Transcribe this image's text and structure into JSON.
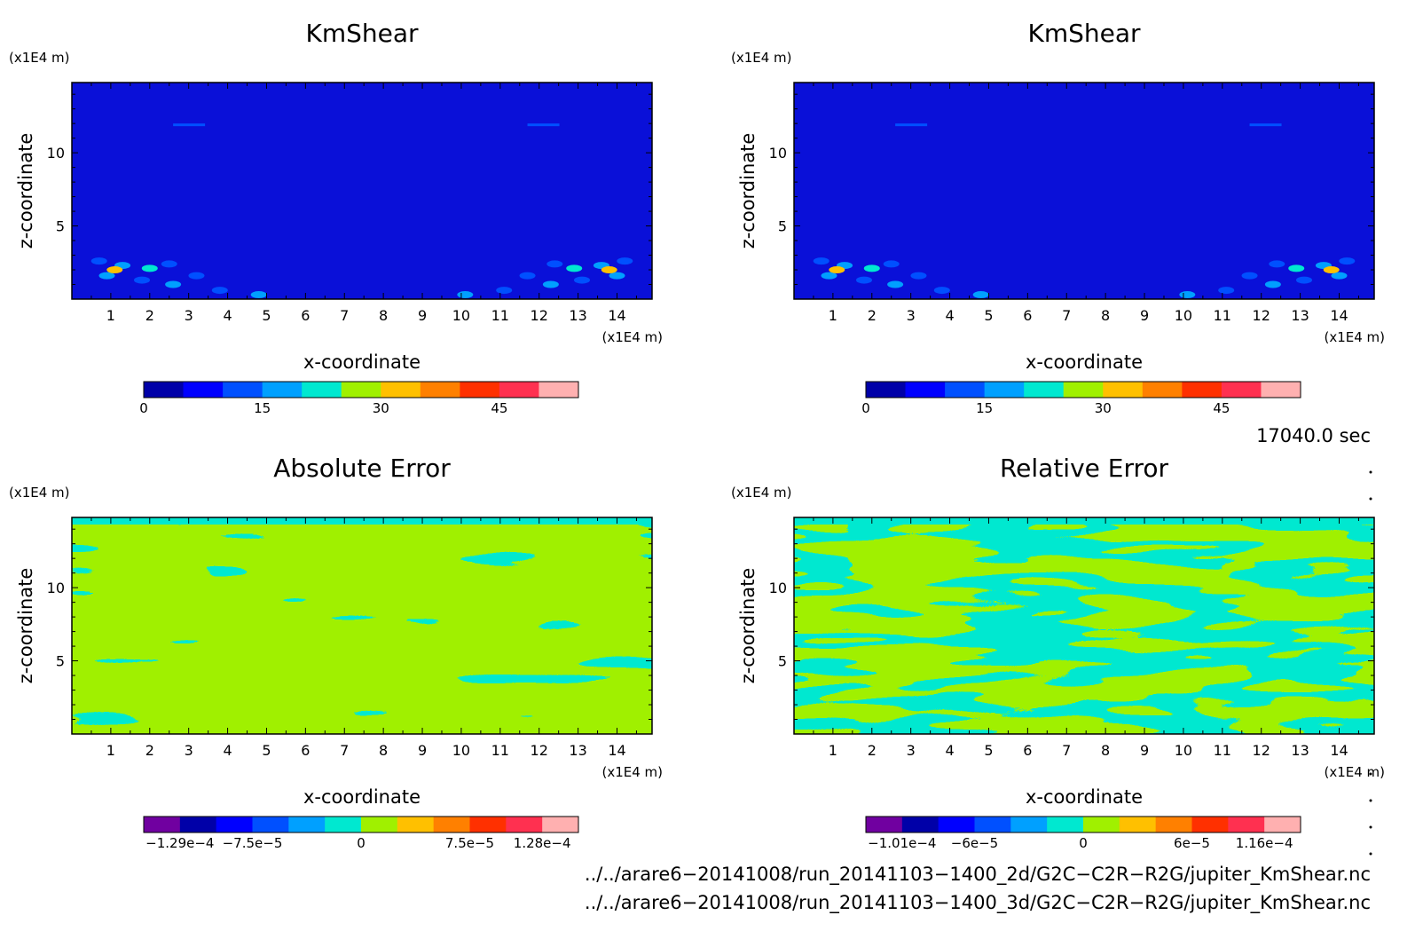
{
  "chart_data": [
    {
      "type": "heatmap",
      "title": "KmShear",
      "xlabel": "x-coordinate",
      "ylabel": "z-coordinate",
      "x_unit": "(x1E4 m)",
      "y_unit": "(x1E4 m)",
      "xlim": [
        0,
        14.9
      ],
      "ylim": [
        0,
        14.8
      ],
      "x_ticks": [
        "1",
        "2",
        "3",
        "4",
        "5",
        "6",
        "7",
        "8",
        "9",
        "10",
        "11",
        "12",
        "13",
        "14"
      ],
      "y_ticks": [
        "5",
        "10"
      ],
      "colorbar": {
        "ticks": [
          "0",
          "15",
          "30",
          "45"
        ],
        "colors": [
          "#0000a8",
          "#0000ff",
          "#0050ff",
          "#00a0ff",
          "#00e8d0",
          "#a0f000",
          "#ffc000",
          "#ff8000",
          "#ff3000",
          "#ff3050",
          "#ffb0b0"
        ]
      },
      "field": "mostly low values near 0 (dark blue) with patches up to ~30 near bottom corners"
    },
    {
      "type": "heatmap",
      "title": "KmShear",
      "xlabel": "x-coordinate",
      "ylabel": "z-coordinate",
      "x_unit": "(x1E4 m)",
      "y_unit": "(x1E4 m)",
      "xlim": [
        0,
        14.9
      ],
      "ylim": [
        0,
        14.8
      ],
      "x_ticks": [
        "1",
        "2",
        "3",
        "4",
        "5",
        "6",
        "7",
        "8",
        "9",
        "10",
        "11",
        "12",
        "13",
        "14"
      ],
      "y_ticks": [
        "5",
        "10"
      ],
      "colorbar": {
        "ticks": [
          "0",
          "15",
          "30",
          "45"
        ],
        "colors": [
          "#0000a8",
          "#0000ff",
          "#0050ff",
          "#00a0ff",
          "#00e8d0",
          "#a0f000",
          "#ffc000",
          "#ff8000",
          "#ff3000",
          "#ff3050",
          "#ffb0b0"
        ]
      },
      "field": "mostly low values near 0 (dark blue) with patches up to ~30 near bottom corners"
    },
    {
      "type": "heatmap",
      "title": "Absolute Error",
      "xlabel": "x-coordinate",
      "ylabel": "z-coordinate",
      "x_unit": "(x1E4 m)",
      "y_unit": "(x1E4 m)",
      "xlim": [
        0,
        14.9
      ],
      "ylim": [
        0,
        14.8
      ],
      "x_ticks": [
        "1",
        "2",
        "3",
        "4",
        "5",
        "6",
        "7",
        "8",
        "9",
        "10",
        "11",
        "12",
        "13",
        "14"
      ],
      "y_ticks": [
        "5",
        "10"
      ],
      "colorbar": {
        "ticks": [
          "−1.29e−4",
          "−7.5e−5",
          "0",
          "7.5e−5",
          "1.28e−4"
        ],
        "colors": [
          "#7000a0",
          "#0000a8",
          "#0000ff",
          "#0050ff",
          "#00a0ff",
          "#00e8d0",
          "#a0f000",
          "#ffc000",
          "#ff8000",
          "#ff3000",
          "#ff3050",
          "#ffb0b0"
        ]
      },
      "field": "values alternating near 0 (cyan / yellow-green bands)"
    },
    {
      "type": "heatmap",
      "title": "Relative Error",
      "xlabel": "x-coordinate",
      "ylabel": "z-coordinate",
      "x_unit": "(x1E4 m)",
      "y_unit": "(x1E4 m)",
      "xlim": [
        0,
        14.9
      ],
      "ylim": [
        0,
        14.8
      ],
      "x_ticks": [
        "1",
        "2",
        "3",
        "4",
        "5",
        "6",
        "7",
        "8",
        "9",
        "10",
        "11",
        "12",
        "13",
        "14"
      ],
      "y_ticks": [
        "5",
        "10"
      ],
      "colorbar": {
        "ticks": [
          "−1.01e−4",
          "−6e−5",
          "0",
          "6e−5",
          "1.16e−4"
        ],
        "colors": [
          "#7000a0",
          "#0000a8",
          "#0000ff",
          "#0050ff",
          "#00a0ff",
          "#00e8d0",
          "#a0f000",
          "#ffc000",
          "#ff8000",
          "#ff3000",
          "#ff3050",
          "#ffb0b0"
        ]
      },
      "field": "values alternating near 0 (cyan / yellow-green bands)"
    }
  ],
  "time_label": "17040.0 sec",
  "footer": {
    "line1": "../../arare6−20141008/run_20141103−1400_2d/G2C−C2R−R2G/jupiter_KmShear.nc",
    "line2": "../../arare6−20141008/run_20141103−1400_3d/G2C−C2R−R2G/jupiter_KmShear.nc"
  }
}
